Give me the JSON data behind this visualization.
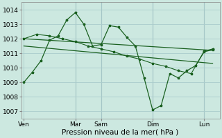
{
  "xlabel": "Pression niveau de la mer( hPa )",
  "background_color": "#cce8e0",
  "grid_color": "#aacccc",
  "line_color": "#1a6020",
  "ylim": [
    1006.5,
    1014.5
  ],
  "yticks": [
    1007,
    1008,
    1009,
    1010,
    1011,
    1012,
    1013,
    1014
  ],
  "xtick_labels": [
    "Ven",
    "Mar",
    "Sam",
    "Dim",
    "Lun"
  ],
  "xtick_positions": [
    0,
    2,
    3,
    5,
    7
  ],
  "xlim": [
    -0.1,
    7.6
  ],
  "series1_x": [
    0,
    0.33,
    0.67,
    1.0,
    1.33,
    1.67,
    2.0,
    2.33,
    2.67,
    3.0,
    3.33,
    3.67,
    4.0,
    4.33,
    4.67,
    5.0,
    5.33,
    5.67,
    6.0,
    6.33,
    6.67,
    7.0,
    7.33
  ],
  "series1_y": [
    1009.0,
    1009.7,
    1010.5,
    1011.9,
    1012.2,
    1013.3,
    1013.8,
    1013.0,
    1011.5,
    1011.6,
    1012.9,
    1012.8,
    1012.1,
    1011.5,
    1009.3,
    1007.1,
    1007.4,
    1009.6,
    1009.3,
    1009.8,
    1010.15,
    1011.1,
    1011.25
  ],
  "series2_x": [
    0,
    0.5,
    1.0,
    1.5,
    2.0,
    2.5,
    3.0,
    3.5,
    4.0,
    4.5,
    5.0,
    5.5,
    6.0,
    6.5,
    7.0,
    7.33
  ],
  "series2_y": [
    1012.0,
    1012.3,
    1012.2,
    1012.0,
    1011.8,
    1011.5,
    1011.3,
    1011.1,
    1010.8,
    1010.6,
    1010.3,
    1010.1,
    1009.8,
    1009.6,
    1011.15,
    1011.3
  ],
  "trend1_x": [
    0,
    7.33
  ],
  "trend1_y": [
    1012.0,
    1011.2
  ],
  "trend2_x": [
    0,
    7.33
  ],
  "trend2_y": [
    1011.5,
    1010.3
  ],
  "vline_positions": [
    2.0,
    3.0,
    5.0,
    7.0
  ],
  "marker_size": 2.5,
  "font_size_label": 7.5,
  "font_size_tick": 6.5
}
